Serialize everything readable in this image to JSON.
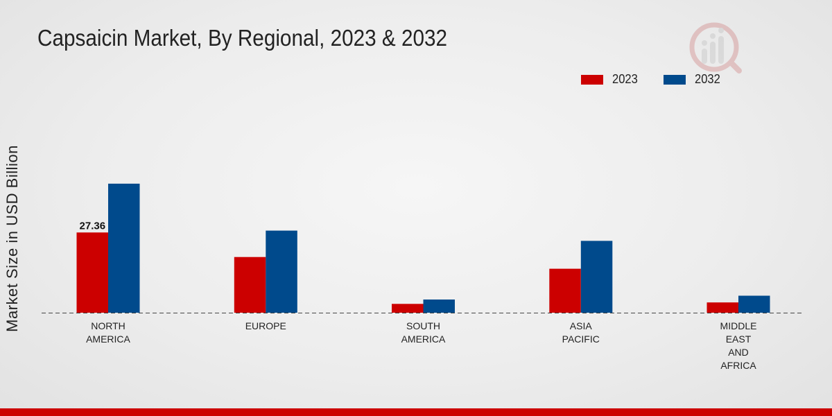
{
  "chart_data": {
    "type": "bar",
    "title": "Capsaicin Market, By Regional, 2023 & 2032",
    "xlabel": "",
    "ylabel": "Market Size in USD Billion",
    "ylim": [
      0,
      70
    ],
    "categories": [
      "NORTH\nAMERICA",
      "EUROPE",
      "SOUTH\nAMERICA",
      "ASIA\nPACIFIC",
      "MIDDLE\nEAST\nAND\nAFRICA"
    ],
    "series": [
      {
        "name": "2023",
        "color": "#cc0000",
        "values": [
          27.36,
          19.0,
          3.0,
          15.0,
          3.5
        ]
      },
      {
        "name": "2032",
        "color": "#004a8c",
        "values": [
          44.0,
          28.0,
          4.5,
          24.5,
          5.8
        ]
      }
    ],
    "data_labels": [
      {
        "series": 0,
        "index": 0,
        "text": "27.36"
      }
    ],
    "grid": false,
    "legend": "top-right"
  }
}
